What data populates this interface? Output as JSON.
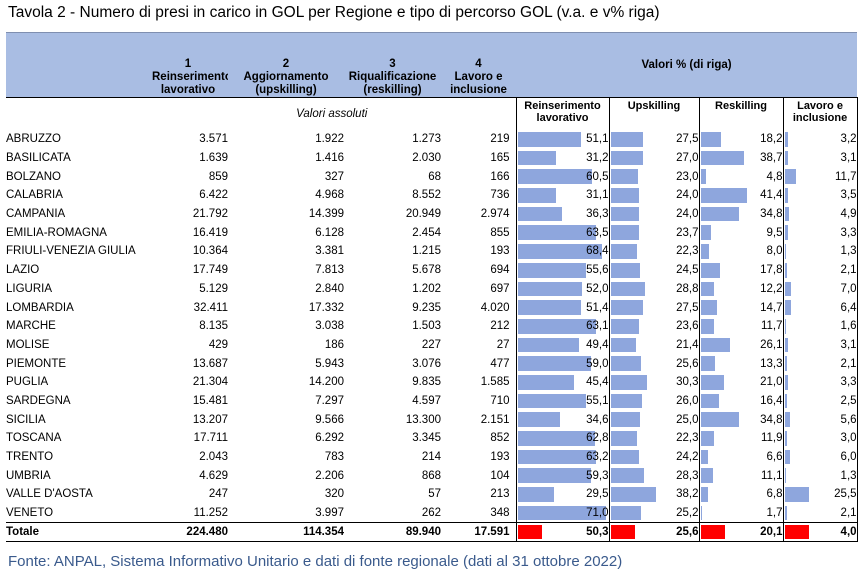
{
  "title": "Tavola 2 - Numero di presi in carico in GOL per Regione e tipo di percorso GOL (v.a. e v% riga)",
  "source": "Fonte: ANPAL, Sistema Informativo Unitario e dati di fonte regionale (dati al 31 ottobre 2022)",
  "header": {
    "col1": {
      "num": "1",
      "label": "Reinserimento lavorativo"
    },
    "col2": {
      "num": "2",
      "label": "Aggiornamento (upskilling)"
    },
    "col3": {
      "num": "3",
      "label": "Riqualificazione (reskilling)"
    },
    "col4": {
      "num": "4",
      "label": "Lavoro e inclusione"
    },
    "pct_title": "Valori % (di riga)",
    "abs_title": "Valori assoluti",
    "pct_cols": [
      "Reinserimento lavorativo",
      "Upskilling",
      "Reskilling",
      "Lavoro e inclusione"
    ]
  },
  "colors": {
    "header_bg": "#a9bde3",
    "bar": "#8ea6dd",
    "total_bar": "#ff0000",
    "source_text": "#3a5a8c"
  },
  "rows": [
    {
      "region": "ABRUZZO",
      "abs": [
        "3.571",
        "1.922",
        "1.273",
        "219"
      ],
      "pct": [
        "51,1",
        "27,5",
        "18,2",
        "3,2"
      ]
    },
    {
      "region": "BASILICATA",
      "abs": [
        "1.639",
        "1.416",
        "2.030",
        "165"
      ],
      "pct": [
        "31,2",
        "27,0",
        "38,7",
        "3,1"
      ]
    },
    {
      "region": "BOLZANO",
      "abs": [
        "859",
        "327",
        "68",
        "166"
      ],
      "pct": [
        "60,5",
        "23,0",
        "4,8",
        "11,7"
      ]
    },
    {
      "region": "CALABRIA",
      "abs": [
        "6.422",
        "4.968",
        "8.552",
        "736"
      ],
      "pct": [
        "31,1",
        "24,0",
        "41,4",
        "3,5"
      ]
    },
    {
      "region": "CAMPANIA",
      "abs": [
        "21.792",
        "14.399",
        "20.949",
        "2.974"
      ],
      "pct": [
        "36,3",
        "24,0",
        "34,8",
        "4,9"
      ]
    },
    {
      "region": "EMILIA-ROMAGNA",
      "abs": [
        "16.419",
        "6.128",
        "2.454",
        "855"
      ],
      "pct": [
        "63,5",
        "23,7",
        "9,5",
        "3,3"
      ]
    },
    {
      "region": "FRIULI-VENEZIA GIULIA",
      "abs": [
        "10.364",
        "3.381",
        "1.215",
        "193"
      ],
      "pct": [
        "68,4",
        "22,3",
        "8,0",
        "1,3"
      ]
    },
    {
      "region": "LAZIO",
      "abs": [
        "17.749",
        "7.813",
        "5.678",
        "694"
      ],
      "pct": [
        "55,6",
        "24,5",
        "17,8",
        "2,1"
      ]
    },
    {
      "region": "LIGURIA",
      "abs": [
        "5.129",
        "2.840",
        "1.202",
        "697"
      ],
      "pct": [
        "52,0",
        "28,8",
        "12,2",
        "7,0"
      ]
    },
    {
      "region": "LOMBARDIA",
      "abs": [
        "32.411",
        "17.332",
        "9.235",
        "4.020"
      ],
      "pct": [
        "51,4",
        "27,5",
        "14,7",
        "6,4"
      ]
    },
    {
      "region": "MARCHE",
      "abs": [
        "8.135",
        "3.038",
        "1.503",
        "212"
      ],
      "pct": [
        "63,1",
        "23,6",
        "11,7",
        "1,6"
      ]
    },
    {
      "region": "MOLISE",
      "abs": [
        "429",
        "186",
        "227",
        "27"
      ],
      "pct": [
        "49,4",
        "21,4",
        "26,1",
        "3,1"
      ]
    },
    {
      "region": "PIEMONTE",
      "abs": [
        "13.687",
        "5.943",
        "3.076",
        "477"
      ],
      "pct": [
        "59,0",
        "25,6",
        "13,3",
        "2,1"
      ]
    },
    {
      "region": "PUGLIA",
      "abs": [
        "21.304",
        "14.200",
        "9.835",
        "1.585"
      ],
      "pct": [
        "45,4",
        "30,3",
        "21,0",
        "3,3"
      ]
    },
    {
      "region": "SARDEGNA",
      "abs": [
        "15.481",
        "7.297",
        "4.597",
        "710"
      ],
      "pct": [
        "55,1",
        "26,0",
        "16,4",
        "2,5"
      ]
    },
    {
      "region": "SICILIA",
      "abs": [
        "13.207",
        "9.566",
        "13.300",
        "2.151"
      ],
      "pct": [
        "34,6",
        "25,0",
        "34,8",
        "5,6"
      ]
    },
    {
      "region": "TOSCANA",
      "abs": [
        "17.711",
        "6.292",
        "3.345",
        "852"
      ],
      "pct": [
        "62,8",
        "22,3",
        "11,9",
        "3,0"
      ]
    },
    {
      "region": "TRENTO",
      "abs": [
        "2.043",
        "783",
        "214",
        "193"
      ],
      "pct": [
        "63,2",
        "24,2",
        "6,6",
        "6,0"
      ]
    },
    {
      "region": "UMBRIA",
      "abs": [
        "4.629",
        "2.206",
        "868",
        "104"
      ],
      "pct": [
        "59,3",
        "28,3",
        "11,1",
        "1,3"
      ]
    },
    {
      "region": "VALLE D'AOSTA",
      "abs": [
        "247",
        "320",
        "57",
        "213"
      ],
      "pct": [
        "29,5",
        "38,2",
        "6,8",
        "25,5"
      ]
    },
    {
      "region": "VENETO",
      "abs": [
        "11.252",
        "3.997",
        "262",
        "348"
      ],
      "pct": [
        "71,0",
        "25,2",
        "1,7",
        "2,1"
      ]
    }
  ],
  "total": {
    "region": "Totale",
    "abs": [
      "224.480",
      "114.354",
      "89.940",
      "17.591"
    ],
    "pct": [
      "50,3",
      "25,6",
      "20,1",
      "4,0"
    ]
  }
}
